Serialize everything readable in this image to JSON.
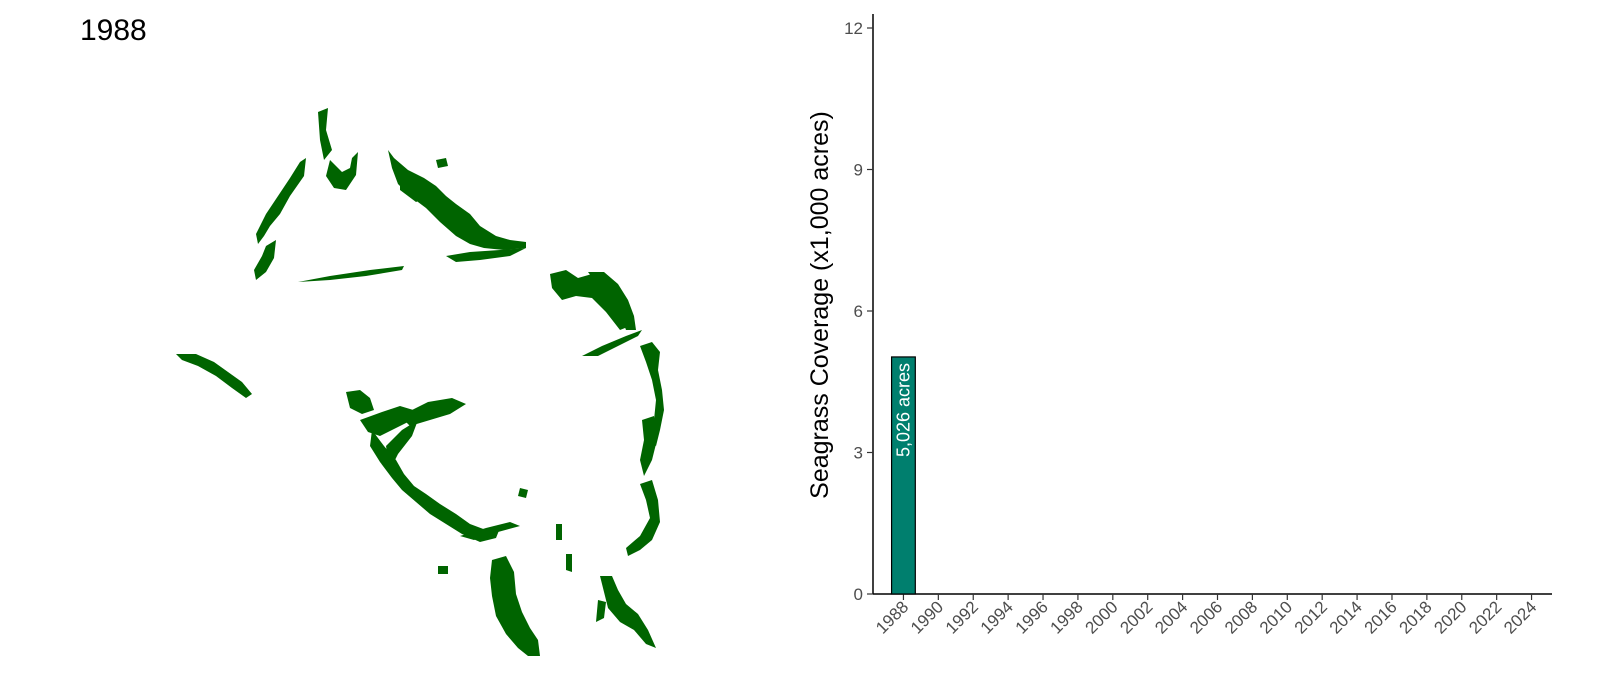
{
  "map": {
    "year_label": "1988",
    "seagrass_color": "#006400"
  },
  "chart_data": {
    "type": "bar",
    "categories": [
      "1988",
      "1990",
      "1992",
      "1994",
      "1996",
      "1998",
      "2000",
      "2002",
      "2004",
      "2006",
      "2008",
      "2010",
      "2012",
      "2014",
      "2016",
      "2018",
      "2020",
      "2022",
      "2024"
    ],
    "values": [
      5.026,
      null,
      null,
      null,
      null,
      null,
      null,
      null,
      null,
      null,
      null,
      null,
      null,
      null,
      null,
      null,
      null,
      null,
      null
    ],
    "data_labels": [
      "5,026 acres"
    ],
    "ylabel": "Seagrass Coverage (x1,000 acres)",
    "xlabel": "",
    "ylim": [
      0,
      12
    ],
    "yticks": [
      0,
      3,
      6,
      9,
      12
    ],
    "bar_color": "#007F6E",
    "bar_outline": "#000000",
    "grid": false
  }
}
